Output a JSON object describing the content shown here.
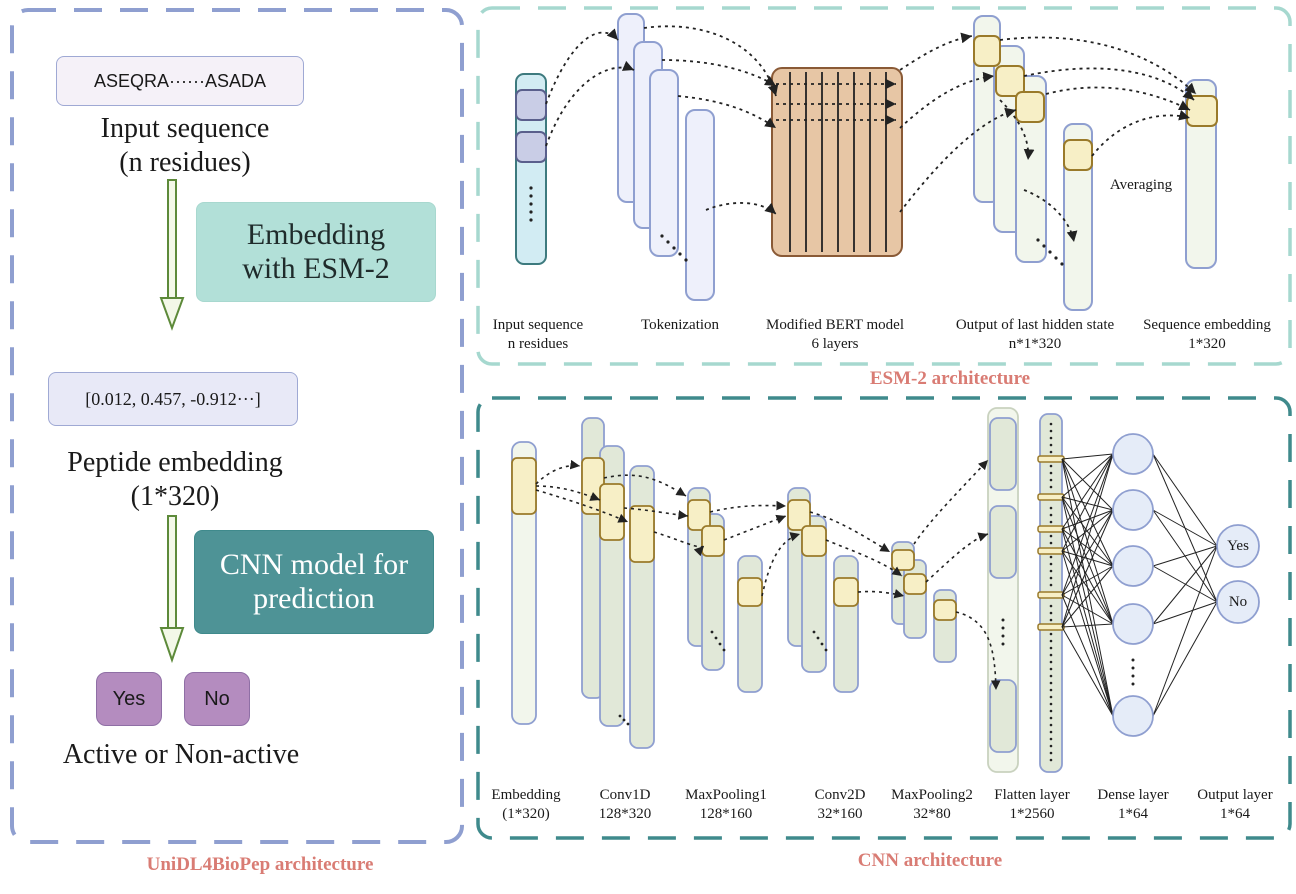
{
  "left": {
    "input_sequence": "ASEQRA······ASADA",
    "input_caption_1": "Input sequence",
    "input_caption_2": "(n residues)",
    "embedding_box_1": "Embedding",
    "embedding_box_2": "with  ESM-2",
    "peptide_vector": "[0.012, 0.457, -0.912···]",
    "peptide_caption_1": "Peptide embedding",
    "peptide_caption_2": "(1*320)",
    "cnn_box_1": "CNN model for",
    "cnn_box_2": "prediction",
    "yes": "Yes",
    "no": "No",
    "result_caption": "Active or  Non-active",
    "title": "UniDL4BioPep architecture"
  },
  "esm": {
    "title": "ESM-2 architecture",
    "averaging": "Averaging",
    "labels": [
      {
        "l1": "Input sequence",
        "l2": "n residues"
      },
      {
        "l1": "Tokenization",
        "l2": ""
      },
      {
        "l1": "Modified BERT model",
        "l2": "6 layers"
      },
      {
        "l1": "Output of last hidden state",
        "l2": "n*1*320"
      },
      {
        "l1": "Sequence embedding",
        "l2": "1*320"
      }
    ]
  },
  "cnn": {
    "title": "CNN architecture",
    "yes": "Yes",
    "no": "No",
    "labels": [
      {
        "l1": "Embedding",
        "l2": "(1*320)"
      },
      {
        "l1": "Conv1D",
        "l2": "128*320"
      },
      {
        "l1": "MaxPooling1",
        "l2": "128*160"
      },
      {
        "l1": "Conv2D",
        "l2": "32*160"
      },
      {
        "l1": "MaxPooling2",
        "l2": "32*80"
      },
      {
        "l1": "Flatten layer",
        "l2": "1*2560"
      },
      {
        "l1": "Dense layer",
        "l2": "1*64"
      },
      {
        "l1": "Output layer",
        "l2": "1*64"
      }
    ]
  },
  "colors": {
    "left_border": "#8f9fd0",
    "esm_border": "#a6d8cf",
    "cnn_border": "#3f8a8c",
    "title_red": "#d97c74",
    "teal_fill": "#b2e0d8",
    "cnn_fill": "#4e9396",
    "yesno_fill": "#b48cbf",
    "bert_fill": "#e7c6a5",
    "highlight": "#f7efc6"
  }
}
